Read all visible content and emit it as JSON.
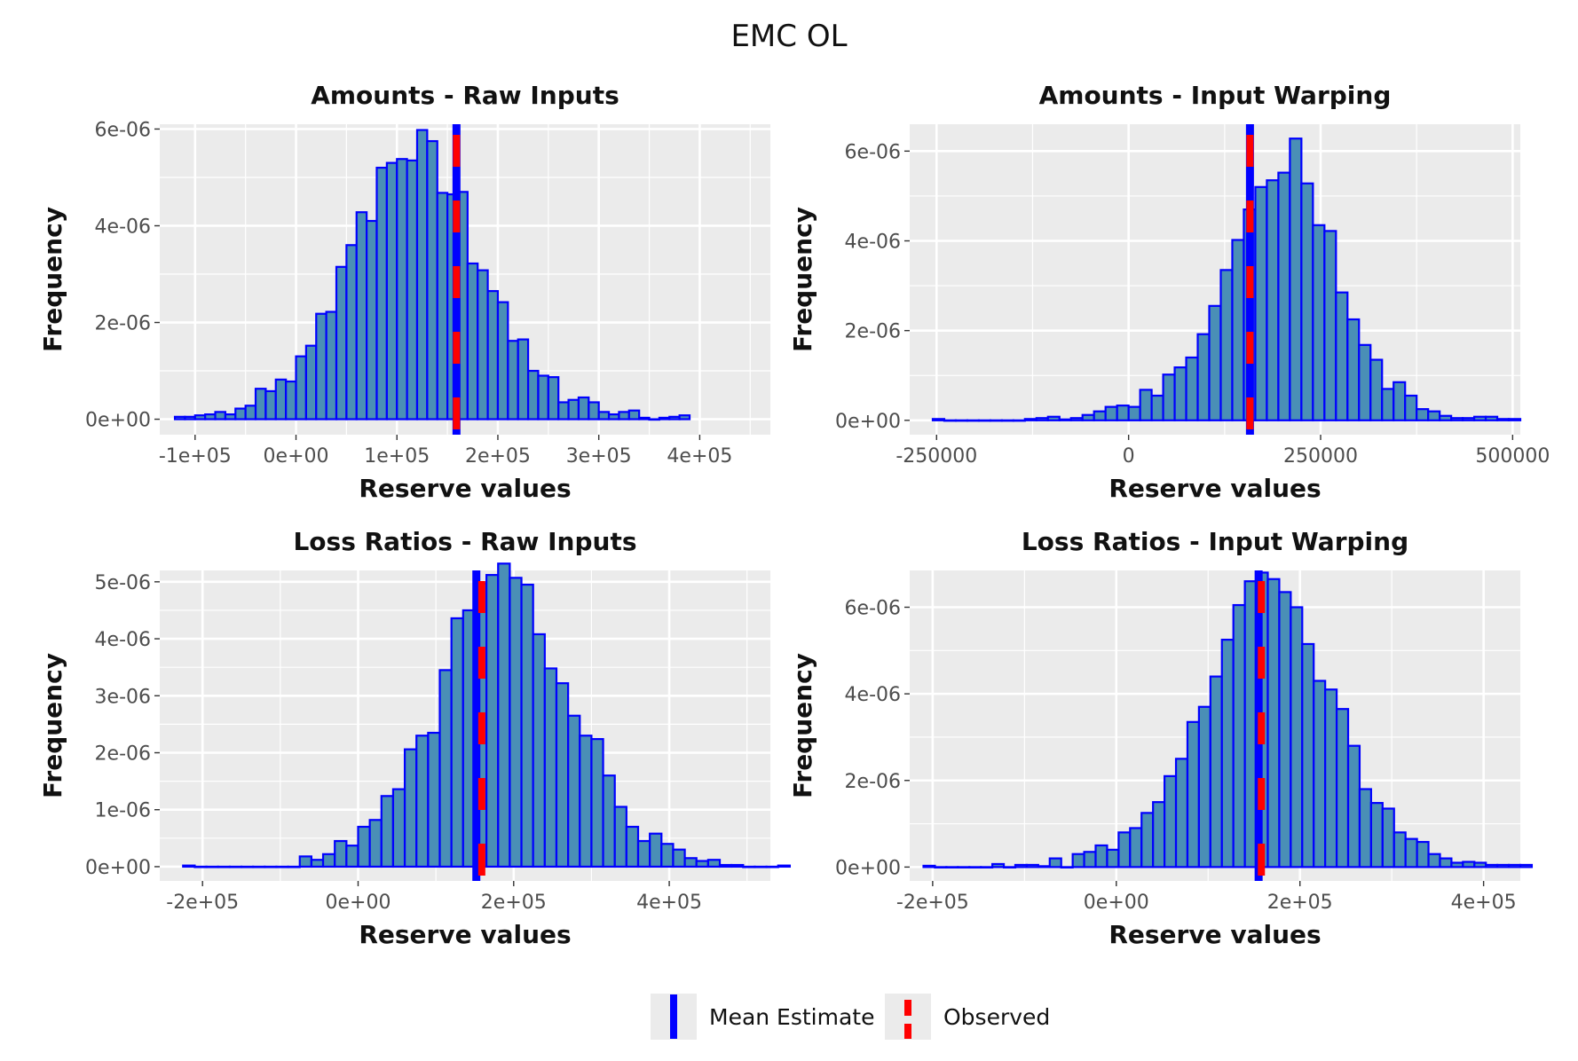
{
  "figure_title": "EMC OL",
  "colors": {
    "panel_bg": "#ebebeb",
    "grid": "#ffffff",
    "bar_fill": "#4a8fb6",
    "bar_edge": "#0000ff",
    "mean": "#0000ff",
    "observed": "#ff0000"
  },
  "legend": {
    "mean_label": "Mean Estimate",
    "observed_label": "Observed"
  },
  "chart_data": [
    {
      "type": "histogram",
      "title": "Amounts - Raw Inputs",
      "xlabel": "Reserve values",
      "ylabel": "Frequency",
      "xlim": [
        -135000,
        470000
      ],
      "ylim": [
        -3.2e-07,
        6.1e-06
      ],
      "xticks": [
        -100000,
        0,
        100000,
        200000,
        300000,
        400000
      ],
      "xtick_labels": [
        "-1e+05",
        "0e+00",
        "1e+05",
        "2e+05",
        "3e+05",
        "4e+05"
      ],
      "yticks": [
        0,
        2e-06,
        4e-06,
        6e-06
      ],
      "ytick_labels": [
        "0e+00",
        "2e-06",
        "4e-06",
        "6e-06"
      ],
      "bin_start": -120000,
      "bin_width": 10000,
      "values": [
        5e-08,
        5e-08,
        8e-08,
        1e-07,
        1.5e-07,
        1e-07,
        2.2e-07,
        2.8e-07,
        6.3e-07,
        5.8e-07,
        8.2e-07,
        7.8e-07,
        1.3e-06,
        1.52e-06,
        2.18e-06,
        2.22e-06,
        3.15e-06,
        3.6e-06,
        4.28e-06,
        4.1e-06,
        5.2e-06,
        5.3e-06,
        5.38e-06,
        5.35e-06,
        5.98e-06,
        5.75e-06,
        4.68e-06,
        4.65e-06,
        4.7e-06,
        3.22e-06,
        3.08e-06,
        2.65e-06,
        2.42e-06,
        1.62e-06,
        1.65e-06,
        1e-06,
        9e-07,
        8.7e-07,
        3.5e-07,
        4e-07,
        4.5e-07,
        3.5e-07,
        1.5e-07,
        1e-07,
        1.5e-07,
        1.8e-07,
        3e-08,
        0.0,
        3e-08,
        5e-08,
        8e-08
      ],
      "mean_estimate": 159000,
      "observed": 159000
    },
    {
      "type": "histogram",
      "title": "Amounts - Input Warping",
      "xlabel": "Reserve values",
      "ylabel": "Frequency",
      "xlim": [
        -285000,
        510000
      ],
      "ylim": [
        -3.2e-07,
        6.6e-06
      ],
      "xticks": [
        -250000,
        0,
        250000,
        500000
      ],
      "xtick_labels": [
        "-250000",
        "0",
        "250000",
        "500000"
      ],
      "yticks": [
        0,
        2e-06,
        4e-06,
        6e-06
      ],
      "ytick_labels": [
        "0e+00",
        "2e-06",
        "4e-06",
        "6e-06"
      ],
      "bin_start": -255000,
      "bin_width": 15000,
      "values": [
        3e-08,
        0.0,
        0.0,
        0.0,
        0.0,
        0.0,
        0.0,
        0.0,
        3e-08,
        5e-08,
        8e-08,
        2e-08,
        5e-08,
        1.2e-07,
        2e-07,
        3e-07,
        3.3e-07,
        3e-07,
        6.8e-07,
        5.5e-07,
        1.02e-06,
        1.18e-06,
        1.4e-06,
        1.92e-06,
        2.55e-06,
        3.35e-06,
        4.02e-06,
        4.7e-06,
        5.2e-06,
        5.35e-06,
        5.52e-06,
        6.28e-06,
        5.28e-06,
        4.35e-06,
        4.22e-06,
        2.85e-06,
        2.25e-06,
        1.68e-06,
        1.35e-06,
        7e-07,
        8.5e-07,
        5.5e-07,
        2.5e-07,
        2e-07,
        1e-07,
        5e-08,
        5e-08,
        8e-08,
        8e-08,
        3e-08,
        3e-08
      ],
      "mean_estimate": 158000,
      "observed": 158000
    },
    {
      "type": "histogram",
      "title": "Loss Ratios - Raw Inputs",
      "xlabel": "Reserve values",
      "ylabel": "Frequency",
      "xlim": [
        -255000,
        530000
      ],
      "ylim": [
        -2.5e-07,
        5.2e-06
      ],
      "xticks": [
        -200000,
        0,
        200000,
        400000
      ],
      "xtick_labels": [
        "-2e+05",
        "0e+00",
        "2e+05",
        "4e+05"
      ],
      "yticks": [
        0,
        1e-06,
        2e-06,
        3e-06,
        4e-06,
        5e-06
      ],
      "ytick_labels": [
        "0e+00",
        "1e-06",
        "2e-06",
        "3e-06",
        "4e-06",
        "5e-06"
      ],
      "bin_start": -225000,
      "bin_width": 15000,
      "values": [
        2e-08,
        0.0,
        0.0,
        0.0,
        0.0,
        0.0,
        0.0,
        0.0,
        0.0,
        0.0,
        1.8e-07,
        1.2e-07,
        2.2e-07,
        4.5e-07,
        3.7e-07,
        7e-07,
        8.2e-07,
        1.24e-06,
        1.36e-06,
        2.06e-06,
        2.3e-06,
        2.35e-06,
        3.45e-06,
        4.36e-06,
        4.5e-06,
        4.97e-06,
        5.12e-06,
        5.32e-06,
        5.07e-06,
        4.95e-06,
        4.08e-06,
        3.48e-06,
        3.22e-06,
        2.65e-06,
        2.3e-06,
        2.24e-06,
        1.6e-06,
        1.05e-06,
        7e-07,
        4.5e-07,
        5.8e-07,
        4e-07,
        3e-07,
        1.5e-07,
        1e-07,
        1.2e-07,
        3e-08,
        3e-08,
        0.0,
        0.0,
        0.0,
        2e-08
      ],
      "mean_estimate": 152000,
      "observed": 159000
    },
    {
      "type": "histogram",
      "title": "Loss Ratios - Input Warping",
      "xlabel": "Reserve values",
      "ylabel": "Frequency",
      "xlim": [
        -225000,
        440000
      ],
      "ylim": [
        -3.2e-07,
        6.85e-06
      ],
      "xticks": [
        -200000,
        0,
        200000,
        400000
      ],
      "xtick_labels": [
        "-2e+05",
        "0e+00",
        "2e+05",
        "4e+05"
      ],
      "yticks": [
        0,
        2e-06,
        4e-06,
        6e-06
      ],
      "ytick_labels": [
        "0e+00",
        "2e-06",
        "4e-06",
        "6e-06"
      ],
      "bin_start": -210000,
      "bin_width": 12500,
      "values": [
        3e-08,
        0.0,
        0.0,
        0.0,
        0.0,
        0.0,
        7e-08,
        0.0,
        5e-08,
        5e-08,
        2e-08,
        2e-07,
        0.0,
        3e-07,
        3.5e-07,
        5e-07,
        4e-07,
        8e-07,
        9e-07,
        1.25e-06,
        1.5e-06,
        2.1e-06,
        2.5e-06,
        3.35e-06,
        3.7e-06,
        4.4e-06,
        5.25e-06,
        6.05e-06,
        6.6e-06,
        6.8e-06,
        6.65e-06,
        6.35e-06,
        6e-06,
        5.15e-06,
        4.3e-06,
        4.1e-06,
        3.65e-06,
        2.8e-06,
        1.8e-06,
        1.48e-06,
        1.35e-06,
        8e-07,
        6.5e-07,
        5.8e-07,
        3e-07,
        2e-07,
        1e-07,
        1.2e-07,
        1e-07,
        5e-08,
        5e-08,
        5e-08,
        5e-08
      ],
      "mean_estimate": 155000,
      "observed": 158000
    }
  ]
}
